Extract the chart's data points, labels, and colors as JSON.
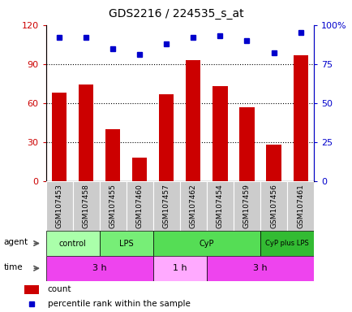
{
  "title": "GDS2216 / 224535_s_at",
  "samples": [
    "GSM107453",
    "GSM107458",
    "GSM107455",
    "GSM107460",
    "GSM107457",
    "GSM107462",
    "GSM107454",
    "GSM107459",
    "GSM107456",
    "GSM107461"
  ],
  "counts": [
    68,
    74,
    40,
    18,
    67,
    93,
    73,
    57,
    28,
    97
  ],
  "percentiles": [
    92,
    92,
    85,
    81,
    88,
    92,
    93,
    90,
    82,
    95
  ],
  "bar_color": "#cc0000",
  "dot_color": "#0000cc",
  "ylim_left": [
    0,
    120
  ],
  "ylim_right": [
    0,
    100
  ],
  "yticks_left": [
    0,
    30,
    60,
    90,
    120
  ],
  "ytick_labels_left": [
    "0",
    "30",
    "60",
    "90",
    "120"
  ],
  "yticks_right": [
    0,
    25,
    50,
    75,
    100
  ],
  "ytick_labels_right": [
    "0",
    "25",
    "50",
    "75",
    "100%"
  ],
  "grid_lines": [
    30,
    60,
    90
  ],
  "agent_groups": [
    {
      "label": "control",
      "start": 0,
      "end": 2,
      "color": "#aaffaa"
    },
    {
      "label": "LPS",
      "start": 2,
      "end": 4,
      "color": "#77ee77"
    },
    {
      "label": "CyP",
      "start": 4,
      "end": 8,
      "color": "#55dd55"
    },
    {
      "label": "CyP plus LPS",
      "start": 8,
      "end": 10,
      "color": "#33bb33"
    }
  ],
  "time_groups": [
    {
      "label": "3 h",
      "start": 0,
      "end": 4,
      "color": "#ee44ee"
    },
    {
      "label": "1 h",
      "start": 4,
      "end": 6,
      "color": "#ffaaff"
    },
    {
      "label": "3 h",
      "start": 6,
      "end": 10,
      "color": "#ee44ee"
    }
  ],
  "legend_count_color": "#cc0000",
  "legend_pct_color": "#0000cc",
  "sample_row_color": "#cccccc"
}
